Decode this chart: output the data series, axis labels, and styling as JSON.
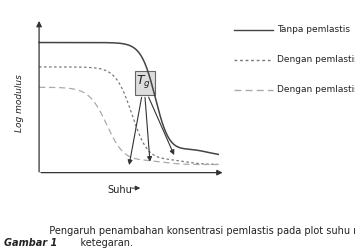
{
  "xlabel": "Suhu",
  "ylabel": "Log modulus",
  "legend_labels": [
    "Tanpa pemlastis",
    "Dengan pemlastis +",
    "Dengan pemlastis ++"
  ],
  "line_colors": [
    "#444444",
    "#777777",
    "#aaaaaa"
  ],
  "caption_bold": "Gambar 1",
  "caption_text": "  Pengaruh penambahan konsentrasi pemlastis pada plot suhu modulus\n            ketegaran.",
  "fig_width": 3.55,
  "fig_height": 2.5,
  "bg_color": "#ffffff",
  "arrow_color": "#333333",
  "text_color": "#222222"
}
